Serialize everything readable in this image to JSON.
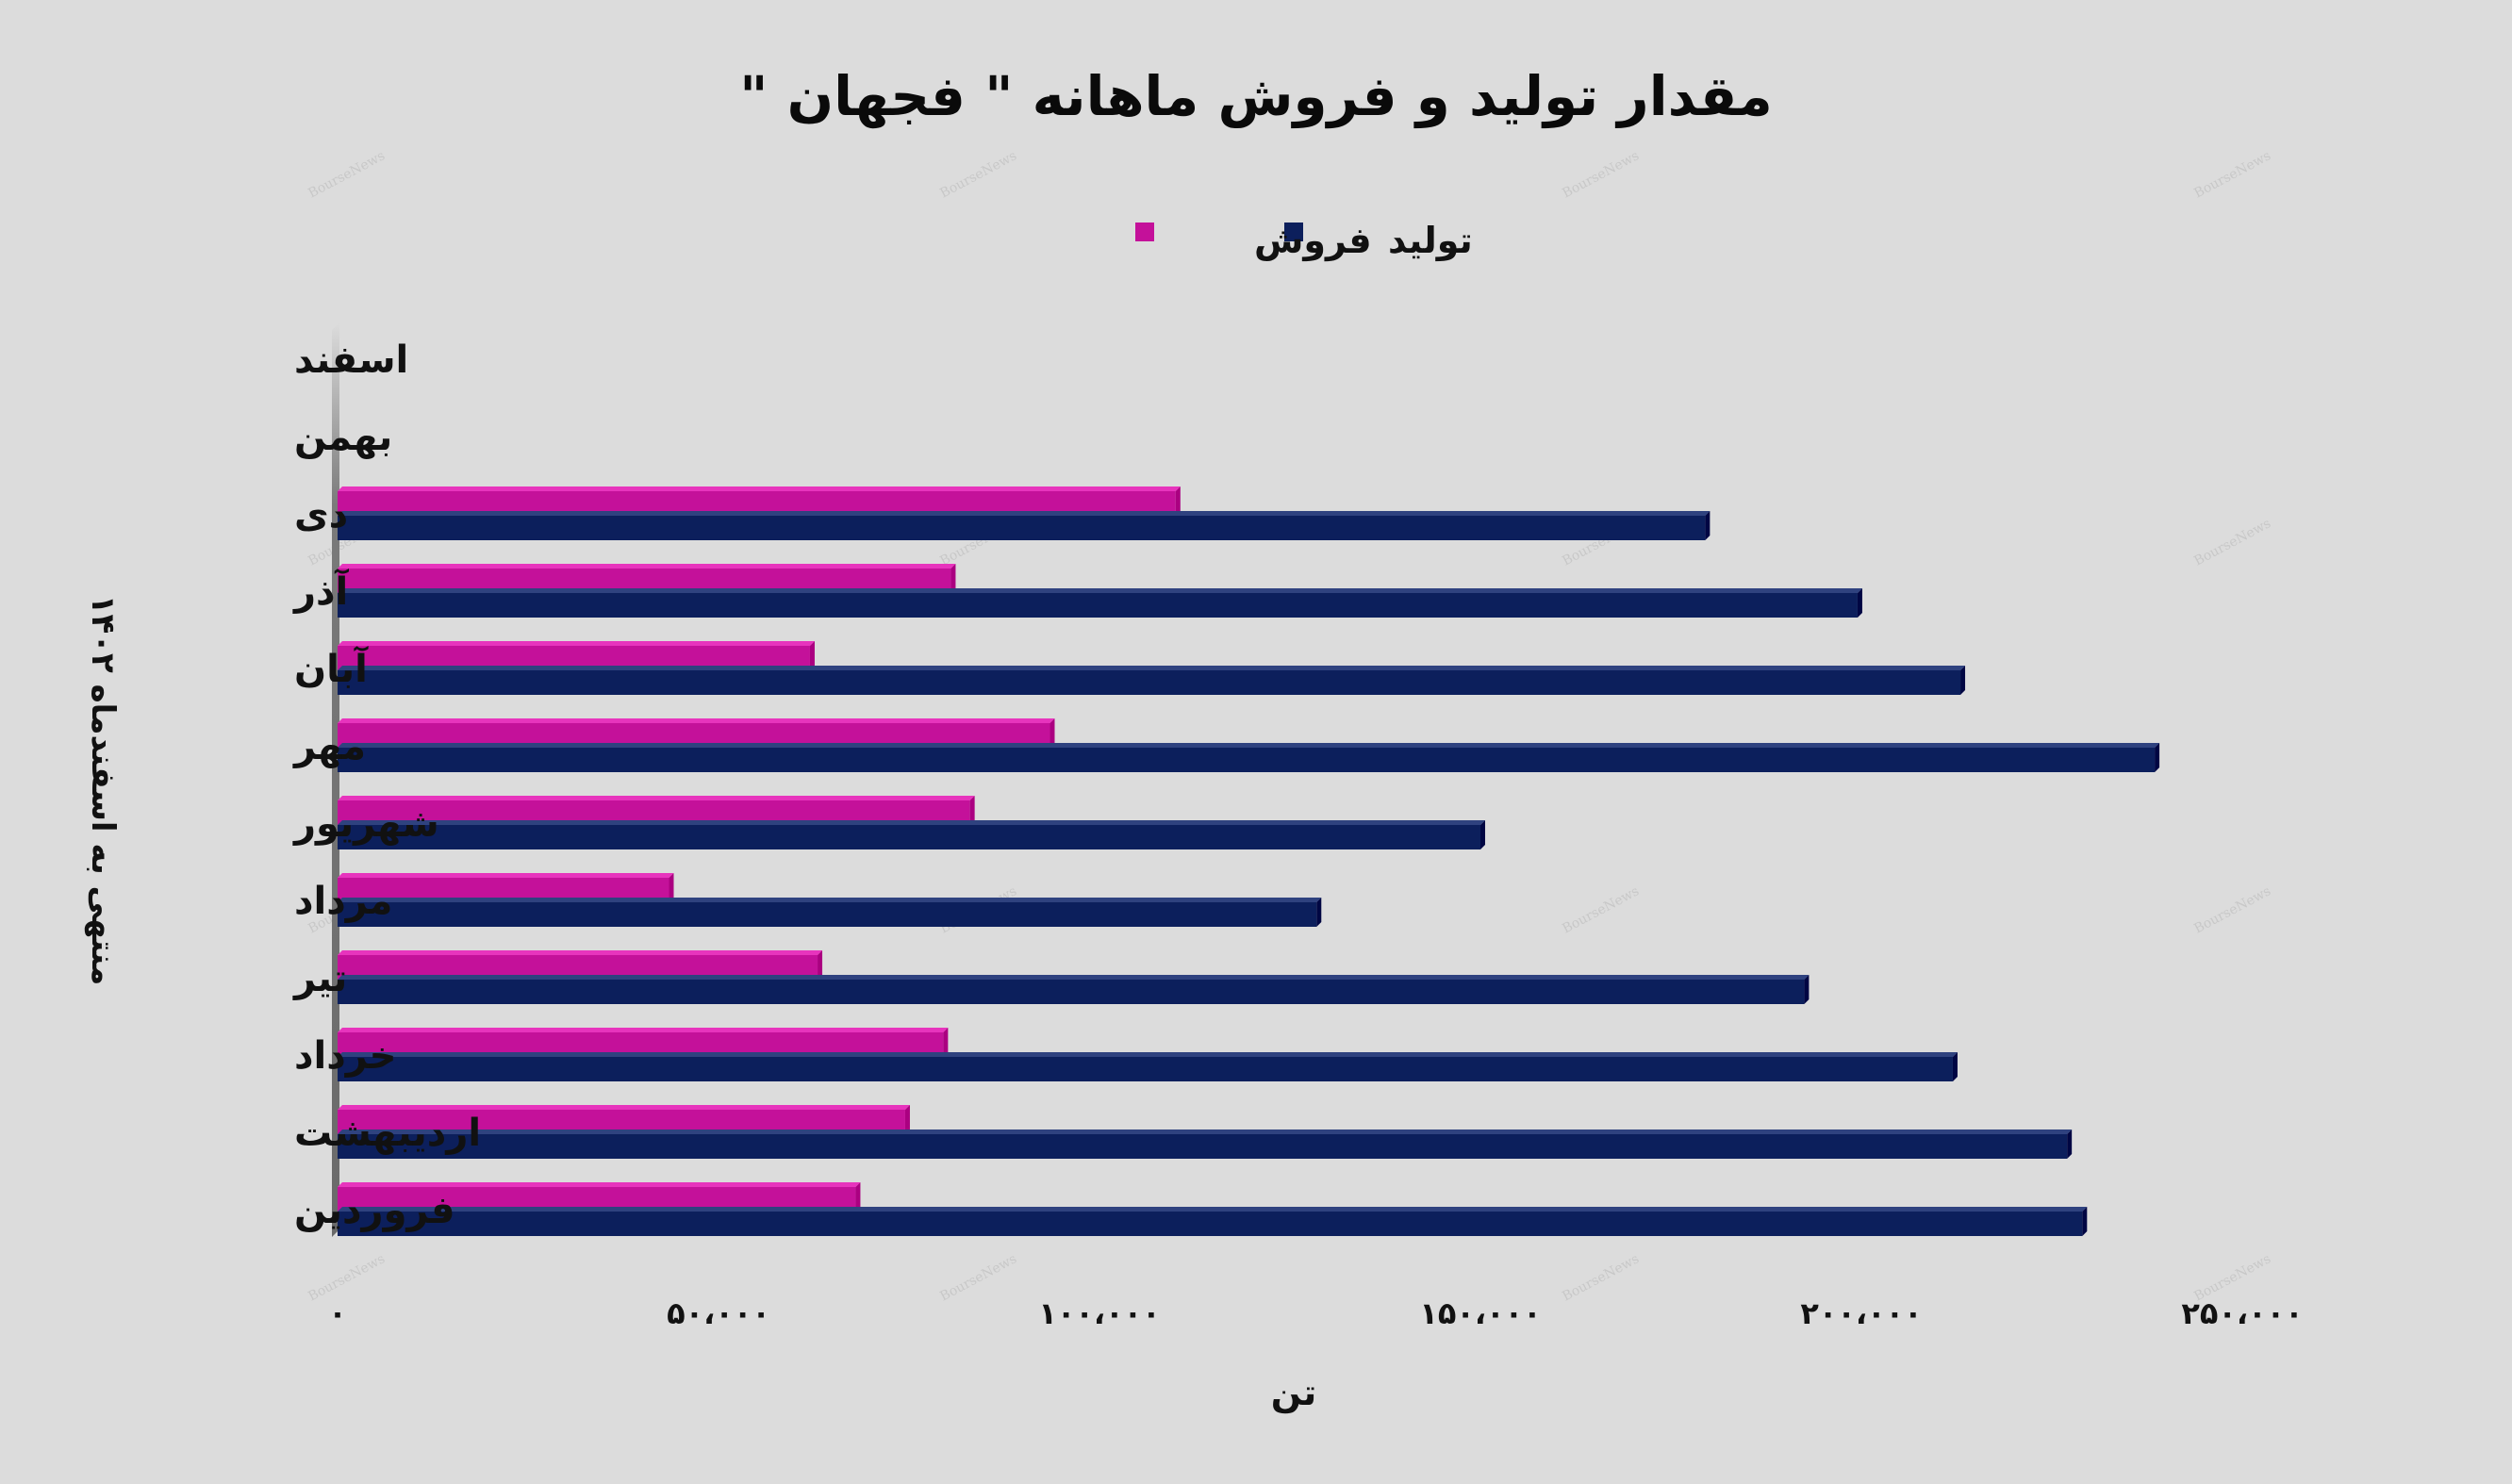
{
  "chart_data": {
    "type": "bar",
    "orientation": "horizontal",
    "title": "مقدار تولید و فروش ماهانه \" فجهان \"",
    "xlabel": "تن",
    "ylabel": "منتهی به اسفندماه ۱۴۰۲",
    "categories": [
      "فروردین",
      "اردیبهشت",
      "خرداد",
      "تیر",
      "مرداد",
      "شهریور",
      "مهر",
      "آبان",
      "آذر",
      "دی",
      "بهمن",
      "اسفند"
    ],
    "series": [
      {
        "name": "تولید",
        "color": "#0c1f5c",
        "values": [
          229000,
          227000,
          212000,
          192500,
          128500,
          150000,
          238500,
          213000,
          199500,
          179500,
          null,
          null
        ]
      },
      {
        "name": "فروش",
        "color": "#c4119a",
        "values": [
          68000,
          74500,
          79500,
          63000,
          43500,
          83000,
          93500,
          62000,
          80500,
          110000,
          null,
          null
        ]
      }
    ],
    "xlim": [
      0,
      250000
    ],
    "x_ticks": [
      0,
      50000,
      100000,
      150000,
      200000,
      250000
    ],
    "x_tick_labels": [
      "۰",
      "۵۰،۰۰۰",
      "۱۰۰،۰۰۰",
      "۱۵۰،۰۰۰",
      "۲۰۰،۰۰۰",
      "۲۵۰،۰۰۰"
    ],
    "legend_position": "top-center",
    "grid": false
  },
  "watermark": "BourseNews"
}
